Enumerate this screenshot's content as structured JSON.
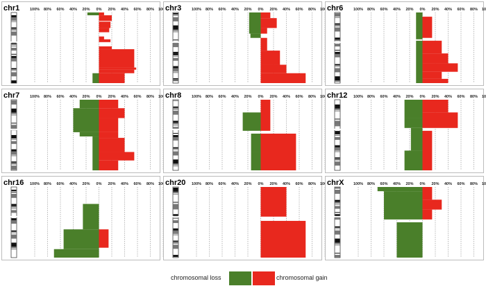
{
  "chart_data": {
    "type": "bar",
    "colors": {
      "loss": "#4a7f2a",
      "gain": "#e8281e"
    },
    "scale_labels": [
      "100%",
      "80%",
      "60%",
      "40%",
      "20%",
      "0%",
      "20%",
      "40%",
      "60%",
      "80%",
      "100%"
    ],
    "legend": {
      "loss": "chromosomal loss",
      "gain": "chromosomal gain"
    },
    "panels": [
      {
        "chromosome": "chr1",
        "loss": [
          [
            0.0,
            0.04,
            18
          ],
          [
            0.04,
            0.2,
            0
          ],
          [
            0.2,
            0.3,
            0
          ],
          [
            0.3,
            0.54,
            0
          ],
          [
            0.54,
            0.86,
            0
          ],
          [
            0.86,
            1.0,
            10
          ]
        ],
        "gain": [
          [
            0.0,
            0.04,
            8
          ],
          [
            0.04,
            0.12,
            20
          ],
          [
            0.13,
            0.22,
            18
          ],
          [
            0.22,
            0.28,
            16
          ],
          [
            0.34,
            0.4,
            8
          ],
          [
            0.38,
            0.42,
            18
          ],
          [
            0.48,
            0.52,
            20
          ],
          [
            0.52,
            0.78,
            55
          ],
          [
            0.78,
            0.81,
            58
          ],
          [
            0.81,
            0.86,
            55
          ],
          [
            0.86,
            1.0,
            40
          ]
        ]
      },
      {
        "chromosome": "chr3",
        "loss": [
          [
            0.0,
            0.3,
            18
          ],
          [
            0.3,
            0.36,
            16
          ],
          [
            0.36,
            0.54,
            0
          ],
          [
            0.54,
            1.0,
            0
          ]
        ],
        "gain": [
          [
            0.0,
            0.08,
            15
          ],
          [
            0.08,
            0.22,
            25
          ],
          [
            0.22,
            0.3,
            10
          ],
          [
            0.3,
            0.36,
            0
          ],
          [
            0.36,
            0.54,
            10
          ],
          [
            0.54,
            0.74,
            30
          ],
          [
            0.74,
            0.86,
            40
          ],
          [
            0.86,
            1.0,
            70
          ]
        ]
      },
      {
        "chromosome": "chr6",
        "loss": [
          [
            0.0,
            0.38,
            10
          ],
          [
            0.4,
            1.0,
            10
          ]
        ],
        "gain": [
          [
            0.06,
            0.36,
            15
          ],
          [
            0.4,
            0.58,
            30
          ],
          [
            0.58,
            0.72,
            40
          ],
          [
            0.72,
            0.84,
            55
          ],
          [
            0.84,
            0.94,
            30
          ],
          [
            0.94,
            1.0,
            40
          ]
        ]
      },
      {
        "chromosome": "chr7",
        "loss": [
          [
            0.0,
            0.12,
            30
          ],
          [
            0.12,
            0.46,
            40
          ],
          [
            0.46,
            0.52,
            30
          ],
          [
            0.52,
            1.0,
            10
          ]
        ],
        "gain": [
          [
            0.0,
            0.12,
            30
          ],
          [
            0.12,
            0.26,
            40
          ],
          [
            0.26,
            0.46,
            30
          ],
          [
            0.46,
            0.54,
            30
          ],
          [
            0.54,
            0.74,
            40
          ],
          [
            0.74,
            0.86,
            55
          ],
          [
            0.86,
            1.0,
            30
          ]
        ]
      },
      {
        "chromosome": "chr8",
        "loss": [
          [
            0.0,
            0.18,
            0
          ],
          [
            0.18,
            0.44,
            28
          ],
          [
            0.48,
            0.74,
            15
          ],
          [
            0.74,
            1.0,
            15
          ]
        ],
        "gain": [
          [
            0.0,
            0.44,
            15
          ],
          [
            0.48,
            1.0,
            55
          ]
        ]
      },
      {
        "chromosome": "chr12",
        "loss": [
          [
            0.0,
            0.26,
            28
          ],
          [
            0.26,
            0.4,
            28
          ],
          [
            0.4,
            0.72,
            18
          ],
          [
            0.72,
            1.0,
            28
          ]
        ],
        "gain": [
          [
            0.0,
            0.18,
            40
          ],
          [
            0.18,
            0.4,
            55
          ],
          [
            0.44,
            1.0,
            15
          ]
        ]
      },
      {
        "chromosome": "chr16",
        "loss": [
          [
            0.0,
            0.24,
            0
          ],
          [
            0.24,
            0.6,
            25
          ],
          [
            0.6,
            0.88,
            55
          ],
          [
            0.88,
            1.0,
            70
          ]
        ],
        "gain": [
          [
            0.6,
            0.86,
            15
          ]
        ]
      },
      {
        "chromosome": "chr20",
        "loss": [
          [
            0.0,
            1.0,
            0
          ]
        ],
        "gain": [
          [
            0.0,
            0.42,
            40
          ],
          [
            0.48,
            1.0,
            70
          ]
        ]
      },
      {
        "chromosome": "chrX",
        "loss": [
          [
            0.0,
            0.06,
            70
          ],
          [
            0.06,
            0.46,
            60
          ],
          [
            0.5,
            1.0,
            40
          ]
        ],
        "gain": [
          [
            0.0,
            0.18,
            15
          ],
          [
            0.18,
            0.32,
            30
          ],
          [
            0.32,
            0.46,
            15
          ]
        ]
      }
    ]
  }
}
